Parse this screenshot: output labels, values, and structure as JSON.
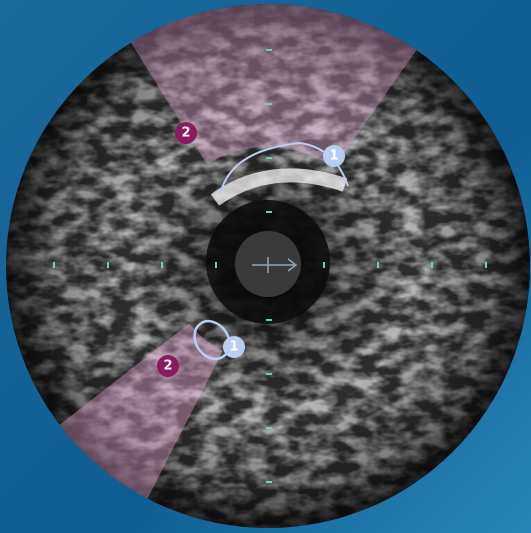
{
  "markers": [
    {
      "label": "2"
    },
    {
      "label": "1"
    },
    {
      "label": "1"
    },
    {
      "label": "2"
    }
  ]
}
